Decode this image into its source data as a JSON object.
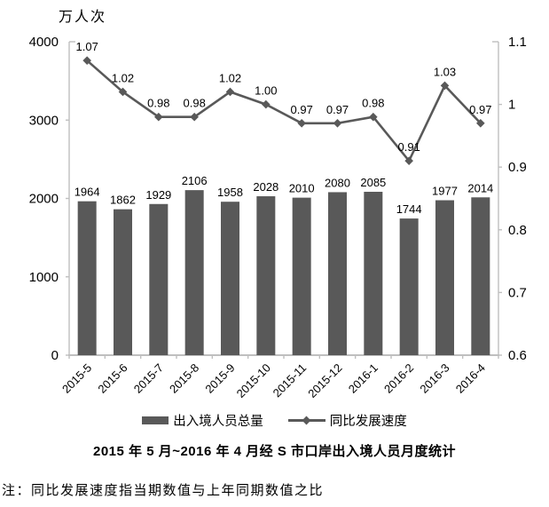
{
  "chart_data": {
    "type": "bar",
    "subtype": "bar-line-combo",
    "title": "2015 年 5 月~2016 年 4 月经 S 市口岸出入境人员月度统计",
    "unit_label": "万人次",
    "note": "注：同比发展速度指当期数值与上年同期数值之比",
    "categories": [
      "2015-5",
      "2015-6",
      "2015-7",
      "2015-8",
      "2015-9",
      "2015-10",
      "2015-11",
      "2015-12",
      "2016-1",
      "2016-2",
      "2016-3",
      "2016-4"
    ],
    "series": [
      {
        "name": "出入境人员总量",
        "type": "bar",
        "axis": "left",
        "values": [
          1964,
          1862,
          1929,
          2106,
          1958,
          2028,
          2010,
          2080,
          2085,
          1744,
          1977,
          2014
        ],
        "labels": [
          "1964",
          "1862",
          "1929",
          "2106",
          "1958",
          "2028",
          "2010",
          "2080",
          "2085",
          "1744",
          "1977",
          "2014"
        ]
      },
      {
        "name": "同比发展速度",
        "type": "line",
        "axis": "right",
        "marker": "diamond",
        "values": [
          1.07,
          1.02,
          0.98,
          0.98,
          1.02,
          1.0,
          0.97,
          0.97,
          0.98,
          0.91,
          1.03,
          0.97
        ],
        "labels": [
          "1.07",
          "1.02",
          "0.98",
          "0.98",
          "1.02",
          "1.00",
          "0.97",
          "0.97",
          "0.98",
          "0.91",
          "1.03",
          "0.97"
        ]
      }
    ],
    "left_axis": {
      "min": 0,
      "max": 4000,
      "tick_values": [
        0,
        1000,
        2000,
        3000,
        4000
      ],
      "tick_labels": [
        "0",
        "1000",
        "2000",
        "3000",
        "4000"
      ]
    },
    "right_axis": {
      "min": 0.6,
      "max": 1.1,
      "tick_values": [
        0.6,
        0.7,
        0.8,
        0.9,
        1,
        1.1
      ],
      "tick_labels": [
        "0.6",
        "0.7",
        "0.8",
        "0.9",
        "1",
        "1.1"
      ]
    },
    "legend": {
      "position": "bottom",
      "items": [
        "出入境人员总量",
        "同比发展速度"
      ]
    },
    "grid": false,
    "colors": {
      "bar": "#595959",
      "line": "#595959",
      "axis": "#BFBFBF",
      "text": "#000000",
      "background": "#FFFFFF"
    }
  }
}
